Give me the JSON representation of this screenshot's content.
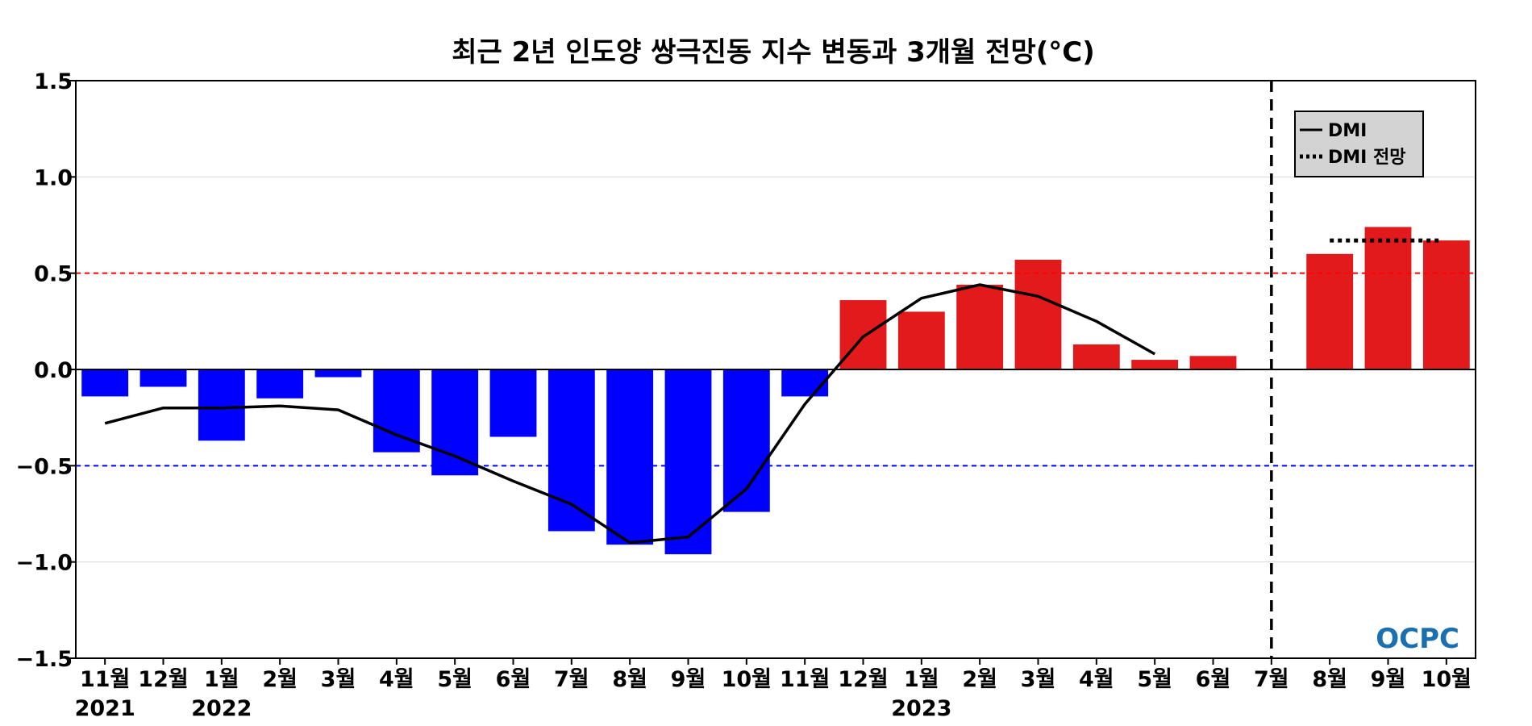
{
  "chart_data": {
    "type": "bar",
    "title": "최근 2년 인도양 쌍극진동 지수 변동과 3개월 전망(°C)",
    "xlabel": "",
    "ylabel": "",
    "ylim": [
      -1.5,
      1.5
    ],
    "yticks": [
      "1.5",
      "1.0",
      "0.5",
      "0.0",
      "−0.5",
      "−1.0",
      "−1.5"
    ],
    "ytick_values": [
      1.5,
      1.0,
      0.5,
      0.0,
      -0.5,
      -1.0,
      -1.5
    ],
    "categories": [
      "11월",
      "12월",
      "1월",
      "2월",
      "3월",
      "4월",
      "5월",
      "6월",
      "7월",
      "8월",
      "9월",
      "10월",
      "11월",
      "12월",
      "1월",
      "2월",
      "3월",
      "4월",
      "5월",
      "6월",
      "7월",
      "8월",
      "9월",
      "10월"
    ],
    "year_labels": [
      {
        "index": 0,
        "label": "2021"
      },
      {
        "index": 2,
        "label": "2022"
      },
      {
        "index": 14,
        "label": "2023"
      }
    ],
    "bars": [
      -0.14,
      -0.09,
      -0.37,
      -0.15,
      -0.04,
      -0.43,
      -0.55,
      -0.35,
      -0.84,
      -0.91,
      -0.96,
      -0.74,
      -0.14,
      0.36,
      0.3,
      0.44,
      0.57,
      0.13,
      0.05,
      0.07,
      null,
      0.6,
      0.74,
      0.67
    ],
    "series": [
      {
        "name": "DMI",
        "style": "solid",
        "color": "#000000",
        "values": [
          -0.28,
          -0.2,
          -0.2,
          -0.19,
          -0.21,
          -0.34,
          -0.45,
          -0.58,
          -0.7,
          -0.9,
          -0.87,
          -0.62,
          -0.18,
          0.17,
          0.37,
          0.44,
          0.38,
          0.25,
          0.08,
          null,
          null,
          null,
          null,
          null
        ]
      },
      {
        "name": "DMI 전망",
        "style": "dotted",
        "color": "#000000",
        "values": [
          null,
          null,
          null,
          null,
          null,
          null,
          null,
          null,
          null,
          null,
          null,
          null,
          null,
          null,
          null,
          null,
          null,
          null,
          null,
          null,
          null,
          0.67,
          0.67,
          0.67
        ]
      }
    ],
    "reference_lines": [
      {
        "y": 0.5,
        "color": "#ff0000",
        "style": "dashed"
      },
      {
        "y": -0.5,
        "color": "#0000ff",
        "style": "dashed"
      },
      {
        "y": 0.0,
        "color": "#000000",
        "style": "solid"
      }
    ],
    "forecast_divider_index": 20,
    "colors": {
      "positive": "#e31a1c",
      "negative": "#0000ff",
      "grid": "#d9d9d9",
      "legend_bg": "#d3d3d3",
      "logo": "#1a6fb0"
    },
    "grid": true,
    "legend_position": "top-right",
    "logo_text": "OCPC"
  }
}
